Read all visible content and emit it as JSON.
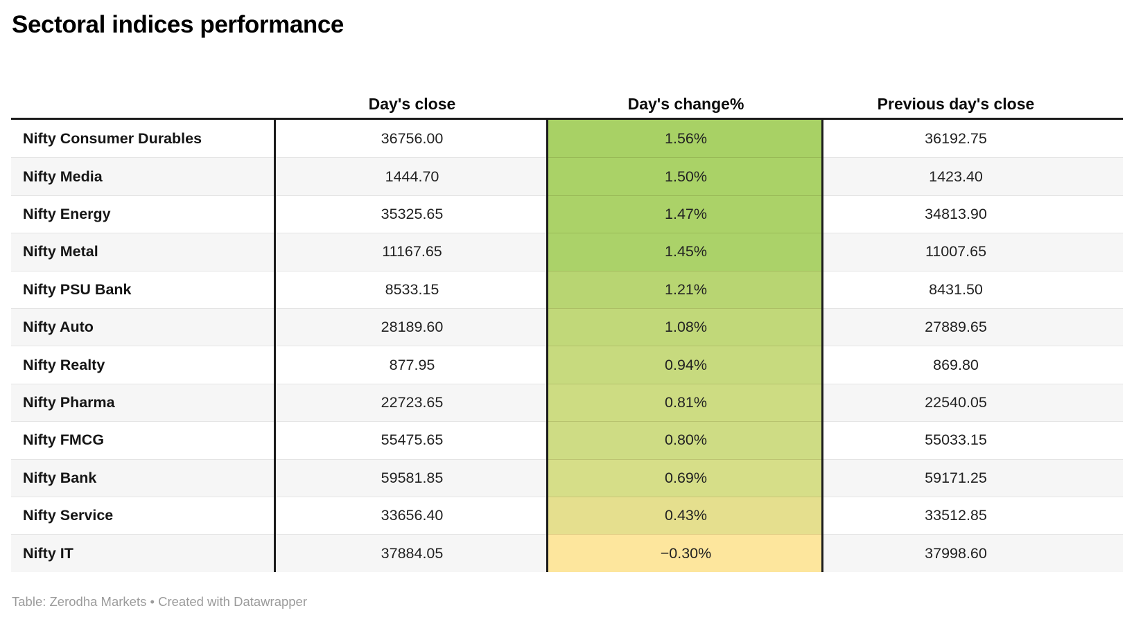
{
  "title": "Sectoral indices performance",
  "footer": "Table: Zerodha Markets • Created with Datawrapper",
  "chart_data": {
    "type": "table",
    "title": "Sectoral indices performance",
    "columns": [
      "Day's close",
      "Day's change%",
      "Previous day's close"
    ],
    "heatmap_column": "Day's change%",
    "heatmap_scale": {
      "high_positive": "#a8d165",
      "low_negative": "#fde69d"
    },
    "rows": [
      {
        "name": "Nifty Consumer Durables",
        "close": "36756.00",
        "change": "1.56%",
        "prev_close": "36192.75",
        "change_color": "#a8d165"
      },
      {
        "name": "Nifty Media",
        "close": "1444.70",
        "change": "1.50%",
        "prev_close": "1423.40",
        "change_color": "#aad267"
      },
      {
        "name": "Nifty Energy",
        "close": "35325.65",
        "change": "1.47%",
        "prev_close": "34813.90",
        "change_color": "#abd268"
      },
      {
        "name": "Nifty Metal",
        "close": "11167.65",
        "change": "1.45%",
        "prev_close": "11007.65",
        "change_color": "#abd269"
      },
      {
        "name": "Nifty PSU Bank",
        "close": "8533.15",
        "change": "1.21%",
        "prev_close": "8431.50",
        "change_color": "#b8d572"
      },
      {
        "name": "Nifty Auto",
        "close": "28189.60",
        "change": "1.08%",
        "prev_close": "27889.65",
        "change_color": "#c1d879"
      },
      {
        "name": "Nifty Realty",
        "close": "877.95",
        "change": "0.94%",
        "prev_close": "869.80",
        "change_color": "#c7da7e"
      },
      {
        "name": "Nifty Pharma",
        "close": "22723.65",
        "change": "0.81%",
        "prev_close": "22540.05",
        "change_color": "#cddc82"
      },
      {
        "name": "Nifty FMCG",
        "close": "55475.65",
        "change": "0.80%",
        "prev_close": "55033.15",
        "change_color": "#cedc84"
      },
      {
        "name": "Nifty Bank",
        "close": "59581.85",
        "change": "0.69%",
        "prev_close": "59171.25",
        "change_color": "#d6de88"
      },
      {
        "name": "Nifty Service",
        "close": "33656.40",
        "change": "0.43%",
        "prev_close": "33512.85",
        "change_color": "#e5df8e"
      },
      {
        "name": "Nifty IT",
        "close": "37884.05",
        "change": "−0.30%",
        "prev_close": "37998.60",
        "change_color": "#fde69d"
      }
    ]
  }
}
